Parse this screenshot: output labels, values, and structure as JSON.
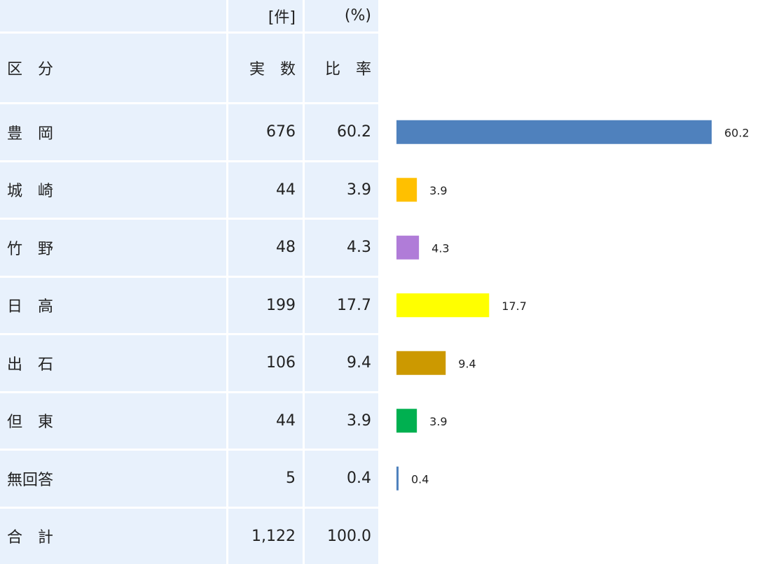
{
  "table": {
    "header": [
      [
        "",
        "[件]",
        "(%)"
      ],
      [
        "区　分",
        "実　数",
        "比　率"
      ]
    ],
    "rows": [
      [
        "豊　岡",
        "676",
        "60.2"
      ],
      [
        "城　崎",
        "44",
        "3.9"
      ],
      [
        "竹　野",
        "48",
        "4.3"
      ],
      [
        "日　高",
        "199",
        "17.7"
      ],
      [
        "出　石",
        "106",
        "9.4"
      ],
      [
        "但　東",
        "44",
        "3.9"
      ],
      [
        "無回答",
        "5",
        "0.4"
      ],
      [
        "合　計",
        "1,122",
        "100.0"
      ]
    ]
  },
  "chart_data": {
    "type": "bar",
    "categories": [
      "豊　岡",
      "城　崎",
      "竹　野",
      "日　高",
      "出　石",
      "但　東",
      "無回答"
    ],
    "values": [
      60.2,
      3.9,
      4.3,
      17.7,
      9.4,
      3.9,
      0.4
    ],
    "colors": [
      "#4f81bd",
      "#ffc000",
      "#b07cd8",
      "#ffff00",
      "#cc9900",
      "#00b050",
      "#4f81bd"
    ]
  }
}
